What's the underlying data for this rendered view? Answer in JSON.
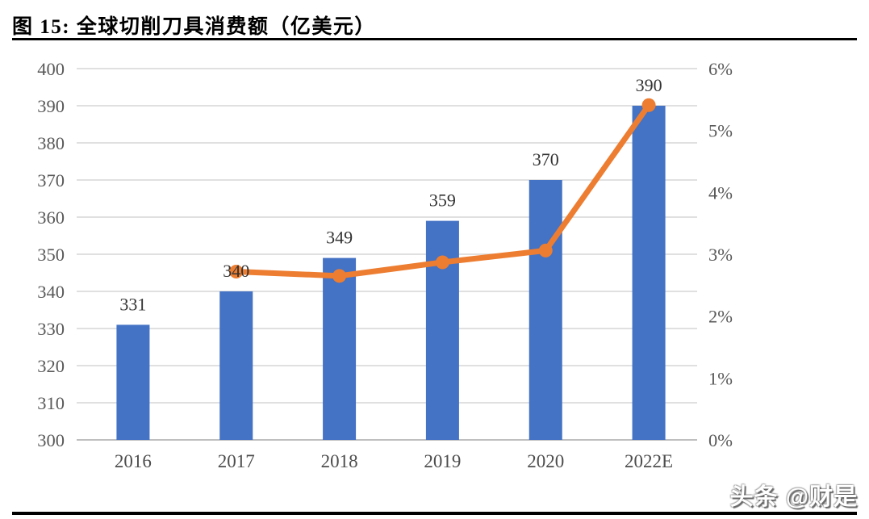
{
  "header": {
    "title": "图 15: 全球切削刀具消费额（亿美元）"
  },
  "watermark": "头条 @财是",
  "chart_data": {
    "type": "bar",
    "title": "全球切削刀具消费额（亿美元）",
    "categories": [
      "2016",
      "2017",
      "2018",
      "2019",
      "2020",
      "2022E"
    ],
    "series": [
      {
        "name": "consumption-bars",
        "type": "bar",
        "axis": "left",
        "values": [
          331,
          340,
          349,
          359,
          370,
          390
        ],
        "data_labels": [
          "331",
          "340",
          "349",
          "359",
          "370",
          "390"
        ],
        "color": "#4472C4"
      },
      {
        "name": "growth-rate-line",
        "type": "line",
        "axis": "right",
        "values": [
          null,
          2.72,
          2.65,
          2.87,
          3.06,
          5.41
        ],
        "color": "#ED7D31"
      }
    ],
    "left_axis": {
      "min": 300,
      "max": 400,
      "step": 10,
      "tick_labels": [
        "300",
        "310",
        "320",
        "330",
        "340",
        "350",
        "360",
        "370",
        "380",
        "390",
        "400"
      ]
    },
    "right_axis": {
      "min": 0,
      "max": 6,
      "step": 1,
      "tick_labels": [
        "0%",
        "1%",
        "2%",
        "3%",
        "4%",
        "5%",
        "6%"
      ]
    },
    "grid": true,
    "legend": "none",
    "colors": {
      "bar": "#4472C4",
      "line": "#ED7D31",
      "gridline": "#DCDCDC",
      "axis_line": "#BFBFBF",
      "axis_text": "#595959",
      "data_label": "#333333"
    }
  }
}
